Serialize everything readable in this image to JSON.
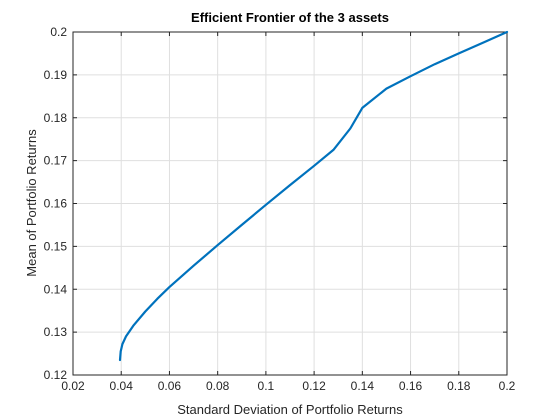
{
  "chart_data": {
    "type": "line",
    "title": "Efficient Frontier of the 3 assets",
    "xlabel": "Standard Deviation of Portfolio Returns",
    "ylabel": "Mean of Portfolio Returns",
    "xlim": [
      0.02,
      0.2
    ],
    "ylim": [
      0.12,
      0.2
    ],
    "xticks": [
      0.02,
      0.04,
      0.06,
      0.08,
      0.1,
      0.12,
      0.14,
      0.16,
      0.18,
      0.2
    ],
    "yticks": [
      0.12,
      0.13,
      0.14,
      0.15,
      0.16,
      0.17,
      0.18,
      0.19,
      0.2
    ],
    "xtick_labels": [
      "0.02",
      "0.04",
      "0.06",
      "0.08",
      "0.1",
      "0.12",
      "0.14",
      "0.16",
      "0.18",
      "0.2"
    ],
    "ytick_labels": [
      "0.12",
      "0.13",
      "0.14",
      "0.15",
      "0.16",
      "0.17",
      "0.18",
      "0.19",
      "0.2"
    ],
    "grid": true,
    "series": [
      {
        "color": "#0072BD",
        "x": [
          0.0395,
          0.0398,
          0.0405,
          0.042,
          0.045,
          0.05,
          0.055,
          0.06,
          0.07,
          0.08,
          0.09,
          0.1,
          0.11,
          0.12,
          0.128,
          0.135,
          0.14,
          0.15,
          0.16,
          0.17,
          0.18,
          0.19,
          0.2
        ],
        "y": [
          0.1235,
          0.1255,
          0.1272,
          0.129,
          0.1315,
          0.1348,
          0.1378,
          0.1405,
          0.1455,
          0.1503,
          0.155,
          0.1597,
          0.1643,
          0.1688,
          0.1725,
          0.1775,
          0.1823,
          0.1868,
          0.1897,
          0.1925,
          0.195,
          0.1975,
          0.2
        ]
      }
    ]
  }
}
